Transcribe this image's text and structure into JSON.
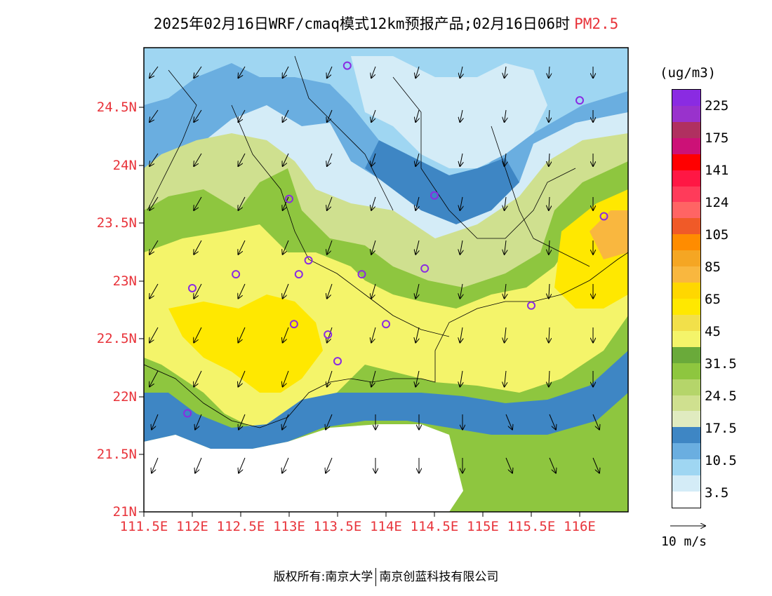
{
  "title": {
    "text": "2025年02月16日WRF/cmaq模式12km预报产品;02月16日06时",
    "variable": "PM2.5"
  },
  "axes": {
    "y_ticks": [
      "24.5N",
      "24N",
      "23.5N",
      "23N",
      "22.5N",
      "22N",
      "21.5N",
      "21N"
    ],
    "x_ticks": [
      "111.5E",
      "112E",
      "112.5E",
      "113E",
      "113.5E",
      "114E",
      "114.5E",
      "115E",
      "115.5E",
      "116E"
    ]
  },
  "legend": {
    "unit": "(ug/m3)",
    "labels": [
      "225",
      "175",
      "141",
      "124",
      "105",
      "85",
      "65",
      "45",
      "31.5",
      "24.5",
      "17.5",
      "10.5",
      "3.5"
    ],
    "colors": [
      "#8a2be2",
      "#9932cc",
      "#b03060",
      "#cc1177",
      "#ff0000",
      "#ff1744",
      "#ff3b5a",
      "#ff6464",
      "#f05a28",
      "#ff8c00",
      "#f5a623",
      "#f9b73f",
      "#ffd700",
      "#ffe800",
      "#f2e04a",
      "#f4f46a",
      "#6aaa3a",
      "#8ec63f",
      "#b5d56a",
      "#cfe08f",
      "#e0ebc0",
      "#3e86c4",
      "#6aaee0",
      "#9fd6f2",
      "#d4ecf7",
      "#ffffff"
    ]
  },
  "wind_reference": {
    "label": "10 m/s"
  },
  "stations": [
    {
      "lon": 113.6,
      "lat": 24.85
    },
    {
      "lon": 116.0,
      "lat": 24.55
    },
    {
      "lon": 113.0,
      "lat": 23.7
    },
    {
      "lon": 114.5,
      "lat": 23.73
    },
    {
      "lon": 116.25,
      "lat": 23.55
    },
    {
      "lon": 113.2,
      "lat": 23.17
    },
    {
      "lon": 113.1,
      "lat": 23.05
    },
    {
      "lon": 112.45,
      "lat": 23.05
    },
    {
      "lon": 112.0,
      "lat": 22.93
    },
    {
      "lon": 113.75,
      "lat": 23.05
    },
    {
      "lon": 114.4,
      "lat": 23.1
    },
    {
      "lon": 115.5,
      "lat": 22.78
    },
    {
      "lon": 113.05,
      "lat": 22.62
    },
    {
      "lon": 113.4,
      "lat": 22.53
    },
    {
      "lon": 114.0,
      "lat": 22.62
    },
    {
      "lon": 113.5,
      "lat": 22.3
    },
    {
      "lon": 111.95,
      "lat": 21.85
    }
  ],
  "footer": {
    "left": "版权所有:南京大学",
    "right": "南京创蓝科技有限公司"
  }
}
